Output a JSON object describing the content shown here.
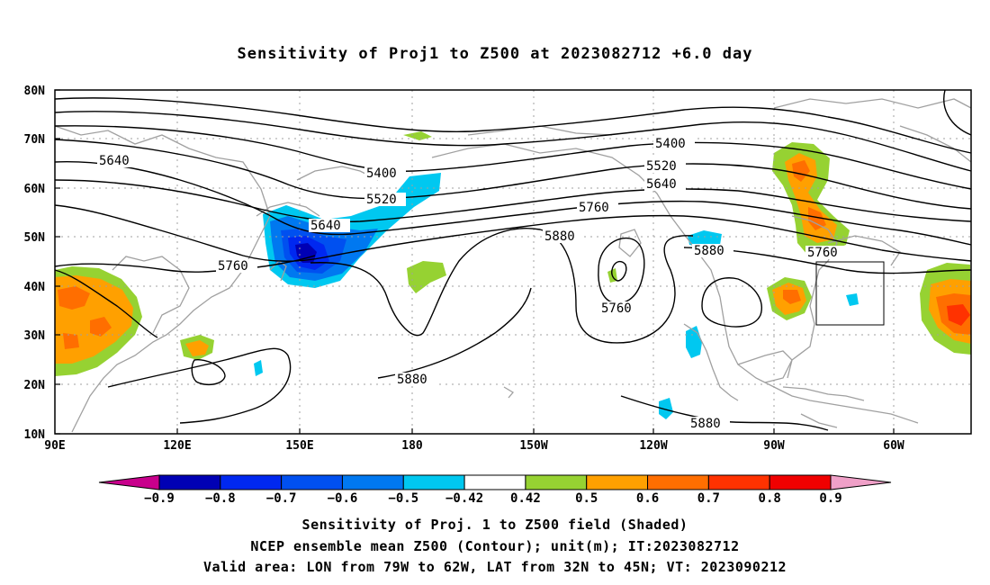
{
  "title": "Sensitivity of Proj1 to Z500 at 2023082712 +6.0 day",
  "lat_labels": [
    "80N",
    "70N",
    "60N",
    "50N",
    "40N",
    "30N",
    "20N",
    "10N"
  ],
  "lon_labels": [
    "90E",
    "120E",
    "150E",
    "180",
    "150W",
    "120W",
    "90W",
    "60W"
  ],
  "contour_labels": [
    {
      "text": "5400",
      "group": "5400"
    },
    {
      "text": "5400",
      "group": "5400"
    },
    {
      "text": "5520",
      "group": "5520"
    },
    {
      "text": "5520",
      "group": "5520"
    },
    {
      "text": "5640",
      "group": "5640"
    },
    {
      "text": "5640",
      "group": "5640"
    },
    {
      "text": "5640",
      "group": "5640"
    },
    {
      "text": "5760",
      "group": "5760"
    },
    {
      "text": "5760",
      "group": "5760"
    },
    {
      "text": "5760",
      "group": "5760"
    },
    {
      "text": "5760",
      "group": "5760"
    },
    {
      "text": "5880",
      "group": "5880"
    },
    {
      "text": "5880",
      "group": "5880"
    },
    {
      "text": "5880",
      "group": "5880"
    },
    {
      "text": "5880",
      "group": "5880"
    }
  ],
  "colorbar": {
    "labels": [
      "-0.9",
      "-0.8",
      "-0.7",
      "-0.6",
      "-0.5",
      "-0.42",
      "0.42",
      "0.5",
      "0.6",
      "0.7",
      "0.8",
      "0.9"
    ],
    "colors": [
      "#c8008c",
      "#0000b4",
      "#0028f0",
      "#0050f0",
      "#0078f0",
      "#00c8f0",
      "#ffffff",
      "#96d232",
      "#ffa000",
      "#ff6e00",
      "#ff3200",
      "#f00000",
      "#f0a0c8"
    ]
  },
  "valid_area": {
    "lon_range": "79W to 62W",
    "lat_range": "32N to 45N"
  },
  "captions": {
    "line1": "Sensitivity of Proj. 1 to Z500 field (Shaded)",
    "line2": "NCEP ensemble mean Z500 (Contour); unit(m); IT:2023082712",
    "line3": "Valid area: LON from 79W to 62W, LAT from 32N to 45N; VT: 2023090212"
  }
}
